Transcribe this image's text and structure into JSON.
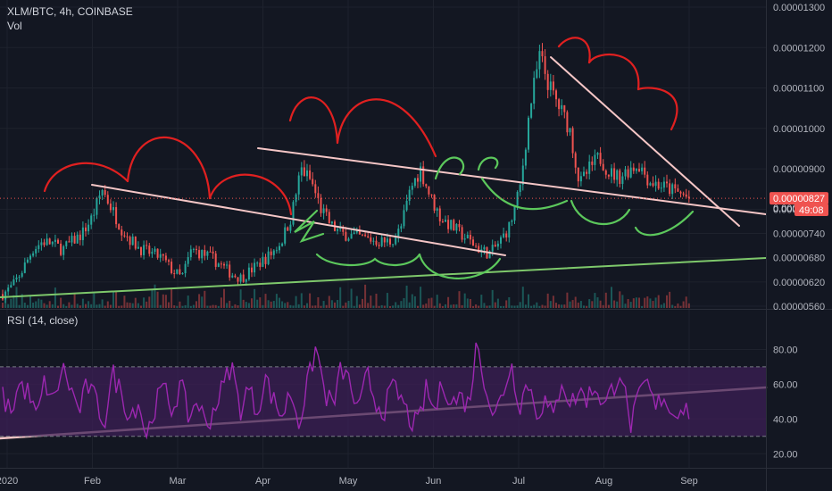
{
  "header": {
    "symbol_line": "XLM/BTC, 4h, COINBASE",
    "volume_label": "Vol",
    "rsi_label": "RSI (14, close)"
  },
  "price_box": {
    "price": "0.00000827",
    "countdown": "49:08",
    "hidden_value": "0.000"
  },
  "colors": {
    "background": "#131722",
    "up": "#26a69a",
    "down": "#ef5350",
    "rsi": "#9c27b0",
    "rsi_band": "#3c1f55",
    "trend_pink": "#f5c6c6",
    "trend_green": "#7ec86b",
    "draw_red": "#e02020",
    "draw_green": "#5cc85c",
    "price_tag": "#ef5350"
  },
  "chart_data": [
    {
      "type": "candlestick",
      "title": "XLM/BTC, 4h, COINBASE",
      "x_axis_labels": [
        "2020",
        "Feb",
        "Mar",
        "Apr",
        "May",
        "Jun",
        "Jul",
        "Aug",
        "Sep"
      ],
      "y_ticks": [
        "0.00001300",
        "0.00001200",
        "0.00001100",
        "0.00001000",
        "0.00000900",
        "0.00000800",
        "0.00000740",
        "0.00000680",
        "0.00000620",
        "0.00000560"
      ],
      "y_range": [
        5.6e-06,
        1.3e-05
      ],
      "last_price": 8.27e-06,
      "series": [
        {
          "values": [
            5.9e-06,
            6.1e-06,
            6.5e-06,
            7e-06,
            7.2e-06,
            7.15e-06,
            7e-06,
            7.2e-06,
            7.4e-06,
            7.8e-06,
            8.5e-06,
            8e-06,
            7.5e-06,
            7.2e-06,
            7e-06,
            6.9e-06,
            6.8e-06,
            6.5e-06,
            6.3e-06,
            7e-06,
            6.9e-06,
            6.8e-06,
            6.6e-06,
            6.4e-06,
            6.3e-06,
            6.5e-06,
            6.7e-06,
            6.9e-06,
            7.2e-06,
            7.8e-06,
            9e-06,
            8.7e-06,
            8e-06,
            7.6e-06,
            7.4e-06,
            7.35e-06,
            7.3e-06,
            7.25e-06,
            7.2e-06,
            7.2e-06,
            7.5e-06,
            8.5e-06,
            9e-06,
            8.3e-06,
            7.8e-06,
            7.6e-06,
            7.4e-06,
            7.2e-06,
            7e-06,
            6.9e-06,
            7.2e-06,
            7.6e-06,
            8.5e-06,
            1.05e-05,
            1.18e-05,
            1.1e-05,
            1.05e-05,
            1e-05,
            8.6e-06,
            9e-06,
            9.3e-06,
            8.9e-06,
            8.8e-06,
            9e-06,
            9.1e-06,
            8.7e-06,
            8.6e-06,
            8.5e-06,
            8.4e-06,
            8.27e-06
          ]
        }
      ]
    },
    {
      "type": "line",
      "title": "RSI (14, close)",
      "y_ticks": [
        "80.00",
        "60.00",
        "40.00",
        "20.00"
      ],
      "y_range": [
        15,
        90
      ],
      "band": [
        30,
        70
      ],
      "series": [
        {
          "values": [
            52,
            45,
            60,
            55,
            40,
            62,
            48,
            70,
            58,
            44,
            60,
            50,
            38,
            66,
            55,
            42,
            50,
            30,
            48,
            58,
            45,
            60,
            40,
            52,
            35,
            47,
            58,
            72,
            45,
            58,
            44,
            64,
            50,
            42,
            56,
            38,
            60,
            82,
            55,
            47,
            70,
            60,
            42,
            66,
            50,
            45,
            58,
            52,
            40,
            36,
            57,
            44,
            62,
            49,
            53,
            48,
            85,
            60,
            40,
            55,
            72,
            48,
            62,
            44,
            50,
            40,
            64,
            48,
            56,
            52,
            60,
            46,
            58,
            70,
            35,
            50,
            62,
            45,
            55,
            42,
            48,
            45
          ]
        }
      ]
    }
  ]
}
